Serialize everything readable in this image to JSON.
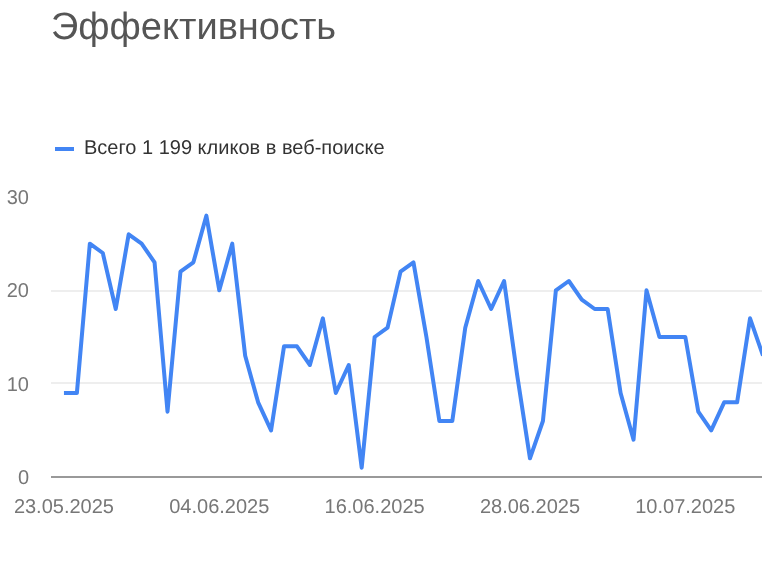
{
  "chart_data": {
    "type": "line",
    "title": "Эффективность",
    "x": [
      "2025-05-23",
      "2025-05-24",
      "2025-05-25",
      "2025-05-26",
      "2025-05-27",
      "2025-05-28",
      "2025-05-29",
      "2025-05-30",
      "2025-05-31",
      "2025-06-01",
      "2025-06-02",
      "2025-06-03",
      "2025-06-04",
      "2025-06-05",
      "2025-06-06",
      "2025-06-07",
      "2025-06-08",
      "2025-06-09",
      "2025-06-10",
      "2025-06-11",
      "2025-06-12",
      "2025-06-13",
      "2025-06-14",
      "2025-06-15",
      "2025-06-16",
      "2025-06-17",
      "2025-06-18",
      "2025-06-19",
      "2025-06-20",
      "2025-06-21",
      "2025-06-22",
      "2025-06-23",
      "2025-06-24",
      "2025-06-25",
      "2025-06-26",
      "2025-06-27",
      "2025-06-28",
      "2025-06-29",
      "2025-06-30",
      "2025-07-01",
      "2025-07-02",
      "2025-07-03",
      "2025-07-04",
      "2025-07-05",
      "2025-07-06",
      "2025-07-07",
      "2025-07-08",
      "2025-07-09",
      "2025-07-10",
      "2025-07-11",
      "2025-07-12",
      "2025-07-13",
      "2025-07-14",
      "2025-07-15",
      "2025-07-16"
    ],
    "series": [
      {
        "name": "Всего 1 199 кликов в веб-поиске",
        "color": "#4285f4",
        "values": [
          9,
          9,
          25,
          24,
          18,
          26,
          25,
          23,
          7,
          22,
          23,
          28,
          20,
          25,
          13,
          8,
          5,
          14,
          14,
          12,
          17,
          9,
          12,
          1,
          15,
          16,
          22,
          23,
          15,
          6,
          6,
          16,
          21,
          18,
          21,
          11,
          2,
          6,
          20,
          21,
          19,
          18,
          18,
          9,
          4,
          20,
          15,
          15,
          15,
          7,
          5,
          8,
          8,
          17,
          13
        ]
      }
    ],
    "xlim": [
      "2025-05-22",
      "2025-07-16"
    ],
    "xticks": [
      {
        "value": "2025-05-23",
        "label": "23.05.2025"
      },
      {
        "value": "2025-06-04",
        "label": "04.06.2025"
      },
      {
        "value": "2025-06-16",
        "label": "16.06.2025"
      },
      {
        "value": "2025-06-28",
        "label": "28.06.2025"
      },
      {
        "value": "2025-07-10",
        "label": "10.07.2025"
      }
    ],
    "ylim": [
      0,
      30
    ],
    "yticks": [
      0,
      10,
      20,
      30
    ],
    "grid": "y",
    "legend": "top left",
    "marker": "none",
    "line_style": "solid"
  }
}
